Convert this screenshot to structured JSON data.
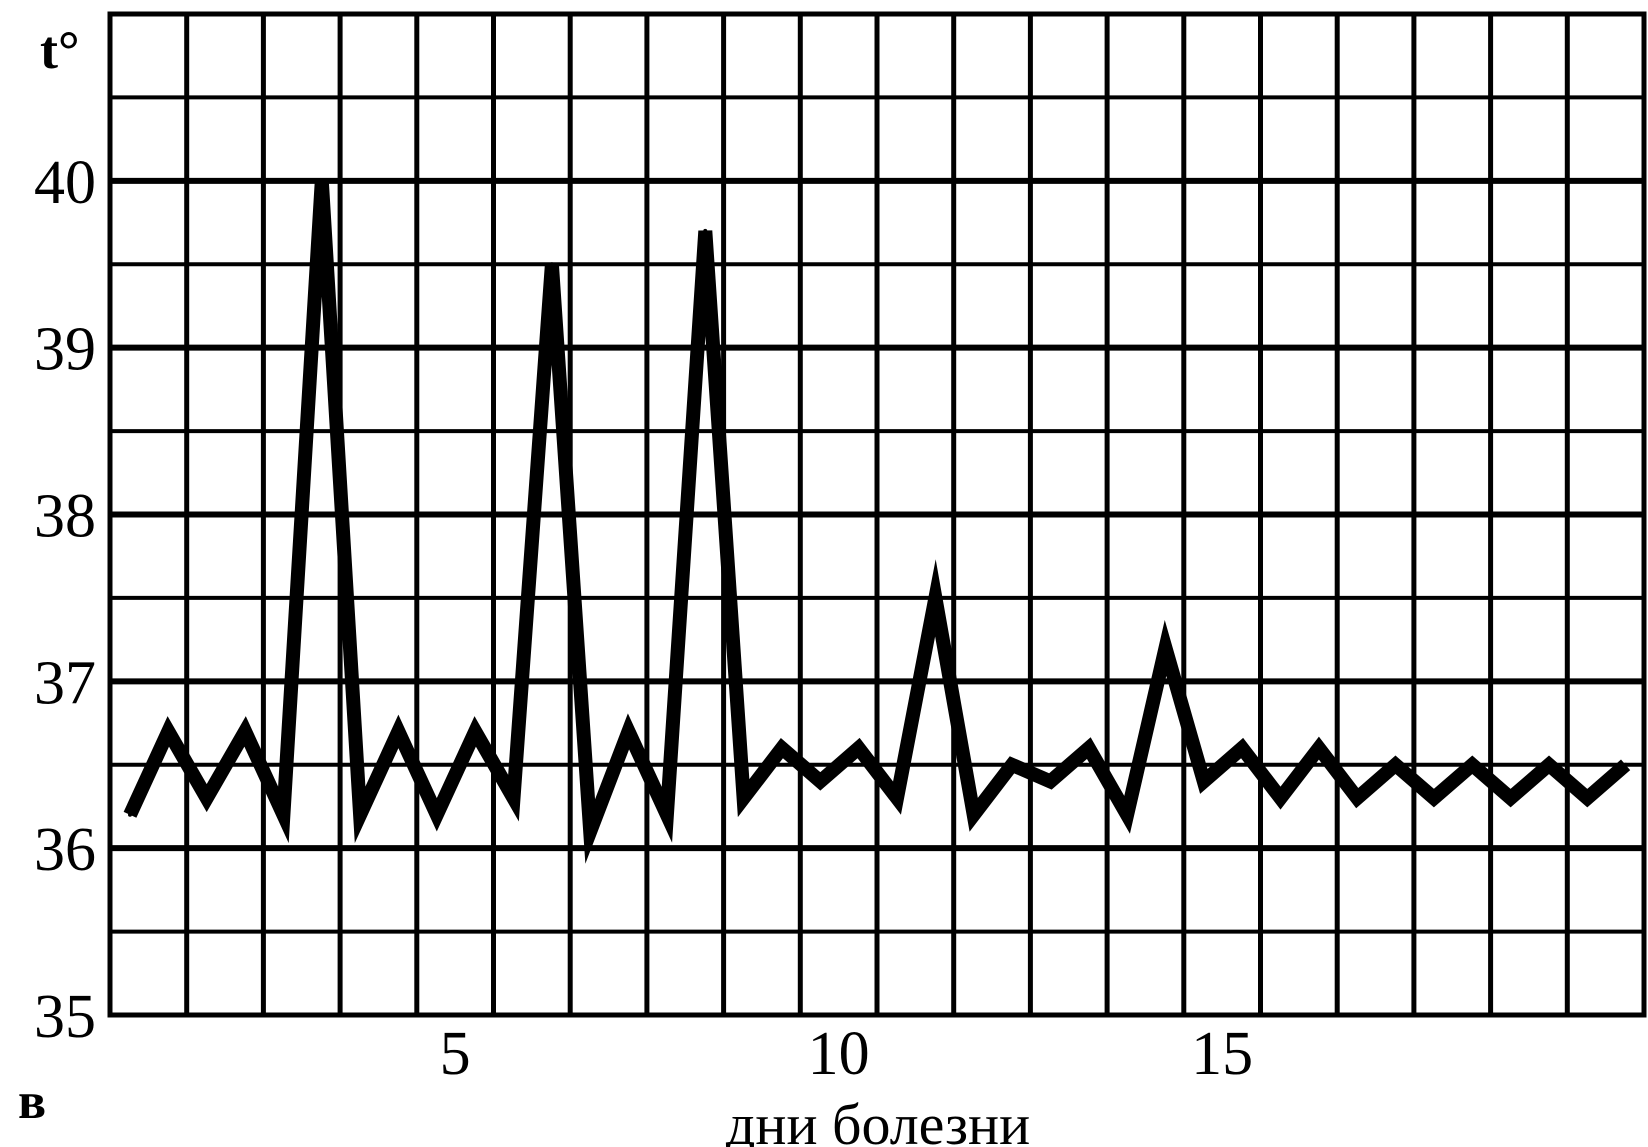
{
  "chart_data": {
    "type": "line",
    "title": "",
    "ylabel": "t°",
    "xlabel": "дни болезни",
    "panel_label": "в",
    "xlim": [
      0,
      20
    ],
    "ylim": [
      35,
      41
    ],
    "x_ticks": [
      5,
      10,
      15
    ],
    "y_ticks": [
      35,
      36,
      37,
      38,
      39,
      40
    ],
    "grid": true,
    "series": [
      {
        "x": [
          0,
          0.5,
          1,
          1.5,
          2,
          2.5,
          3,
          3.5,
          4,
          4.5,
          5,
          5.5,
          6,
          6.5,
          7,
          7.5,
          8,
          8.5,
          9,
          9.5,
          10,
          10.5,
          11,
          11.5,
          12,
          12.5,
          13,
          13.5,
          14,
          14.5,
          15,
          15.5,
          16,
          16.5,
          17,
          17.5,
          18,
          18.5,
          19,
          19.5
        ],
        "y": [
          36.2,
          36.7,
          36.3,
          36.7,
          36.2,
          40.0,
          36.2,
          36.7,
          36.2,
          36.7,
          36.3,
          39.5,
          36.1,
          36.7,
          36.2,
          39.7,
          36.3,
          36.6,
          36.4,
          36.6,
          36.3,
          37.5,
          36.2,
          36.5,
          36.4,
          36.6,
          36.2,
          37.2,
          36.4,
          36.6,
          36.3,
          36.6,
          36.3,
          36.5,
          36.3,
          36.5,
          36.3,
          36.5,
          36.3,
          36.5
        ]
      }
    ]
  }
}
